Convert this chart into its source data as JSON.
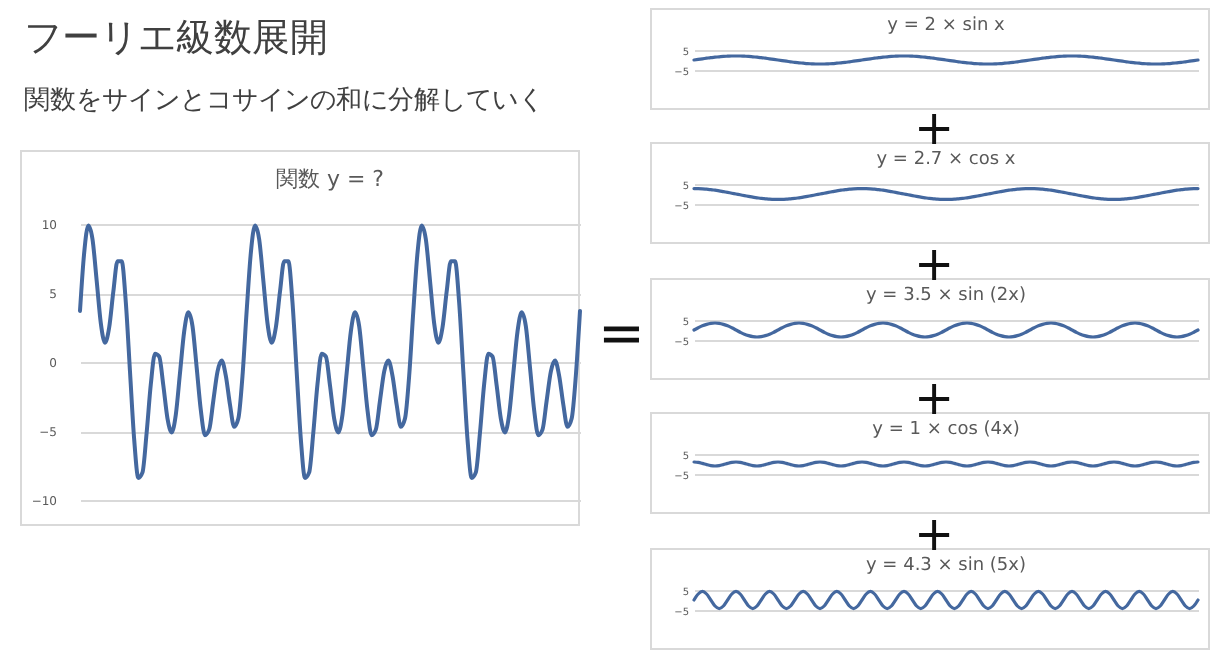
{
  "chart_data": [
    {
      "type": "other",
      "title": "フーリエ級数展開",
      "subtitle": "関数をサインとコサインの和に分解していく"
    },
    {
      "type": "line",
      "title": "関数 y = ?",
      "annotations": [
        "="
      ],
      "categories": [
        null,
        null,
        null,
        null,
        null,
        null,
        null,
        null,
        null,
        null,
        null,
        null,
        null,
        null,
        null,
        null,
        null,
        null,
        null,
        null,
        null,
        null,
        null,
        null,
        null,
        null,
        null,
        null,
        null,
        null,
        null,
        null,
        null,
        null,
        null,
        null,
        null,
        null,
        null,
        null,
        null,
        null,
        null,
        null,
        null,
        null,
        null,
        null,
        null,
        null,
        null,
        null,
        null,
        null,
        null,
        null,
        null,
        null,
        null,
        null,
        null,
        null,
        null,
        null,
        null,
        null,
        null,
        null,
        null,
        null,
        null,
        null,
        null,
        null,
        null,
        null,
        null,
        null,
        null,
        null,
        null,
        null,
        null,
        null,
        null,
        null,
        null,
        null,
        null,
        null,
        null,
        null,
        null,
        null,
        null,
        null,
        null,
        null,
        null,
        null,
        null,
        null,
        null,
        null,
        null,
        null,
        null,
        null,
        null,
        null,
        null,
        null,
        null,
        null,
        null,
        null,
        null,
        null,
        null,
        null,
        null
      ],
      "ylim": [
        -10,
        10
      ],
      "yticks": [
        -10,
        -5,
        0,
        5,
        10
      ],
      "grid": "y",
      "tick_labels": "y",
      "series": [
        {
          "color": "#44689f",
          "values": [
            3.7,
            7.9,
            9.9,
            8.9,
            5.9,
            2.8,
            1.4,
            2.5,
            5.1,
            7.3,
            7.3,
            4.3,
            -0.7,
            -5.6,
            -8.4,
            -8.0,
            -5.1,
            -1.6,
            0.6,
            0.4,
            -1.7,
            -4.1,
            -5.1,
            -3.8,
            -0.8,
            2.2,
            3.6,
            2.6,
            -0.4,
            -3.5,
            -5.3,
            -4.9,
            -2.8,
            -0.7,
            0.1,
            -1.0,
            -3.1,
            -4.7,
            -4.1,
            -1.0,
            3.7,
            7.9,
            9.9,
            8.9,
            5.9,
            2.8,
            1.4,
            2.5,
            5.1,
            7.3,
            7.3,
            4.3,
            -0.7,
            -5.6,
            -8.4,
            -8.0,
            -5.1,
            -1.6,
            0.6,
            0.4,
            -1.7,
            -4.1,
            -5.1,
            -3.8,
            -0.8,
            2.2,
            3.6,
            2.6,
            -0.4,
            -3.5,
            -5.3,
            -4.9,
            -2.8,
            -0.7,
            0.1,
            -1.0,
            -3.1,
            -4.7,
            -4.1,
            -1.0,
            3.7,
            7.9,
            9.9,
            8.9,
            5.9,
            2.8,
            1.4,
            2.5,
            5.1,
            7.3,
            7.3,
            4.3,
            -0.7,
            -5.6,
            -8.4,
            -8.0,
            -5.1,
            -1.6,
            0.6,
            0.4,
            -1.7,
            -4.1,
            -5.1,
            -3.8,
            -0.8,
            2.2,
            3.6,
            2.6,
            -0.4,
            -3.5,
            -5.3,
            -4.9,
            -2.8,
            -0.7,
            0.1,
            -1.0,
            -3.1,
            -4.7,
            -4.1,
            -1.0,
            3.7
          ]
        }
      ]
    },
    {
      "type": "line",
      "title": "y = 2 × sin x",
      "categories": [
        null,
        null,
        null,
        null,
        null,
        null,
        null,
        null,
        null,
        null,
        null,
        null,
        null,
        null,
        null,
        null,
        null,
        null,
        null,
        null,
        null,
        null,
        null,
        null,
        null,
        null,
        null,
        null,
        null,
        null,
        null,
        null,
        null,
        null,
        null,
        null,
        null,
        null,
        null,
        null,
        null,
        null,
        null,
        null,
        null,
        null,
        null,
        null,
        null,
        null,
        null,
        null,
        null,
        null,
        null,
        null,
        null,
        null,
        null,
        null,
        null,
        null,
        null,
        null,
        null,
        null,
        null,
        null,
        null,
        null,
        null,
        null,
        null,
        null,
        null,
        null,
        null,
        null,
        null,
        null,
        null,
        null,
        null,
        null,
        null,
        null,
        null,
        null,
        null,
        null,
        null,
        null,
        null,
        null,
        null,
        null,
        null,
        null,
        null,
        null,
        null,
        null,
        null,
        null,
        null,
        null,
        null,
        null,
        null,
        null,
        null,
        null,
        null,
        null,
        null,
        null,
        null,
        null,
        null,
        null,
        null
      ],
      "ylim": [
        -5,
        5
      ],
      "yticks": [
        -5,
        5
      ],
      "grid": "y",
      "tick_labels": "y",
      "series": [
        {
          "color": "#44689f",
          "values": [
            0,
            0.3,
            0.6,
            0.9,
            1.2,
            1.4,
            1.6,
            1.8,
            1.9,
            2.0,
            2.0,
            2.0,
            1.9,
            1.8,
            1.6,
            1.4,
            1.2,
            0.9,
            0.6,
            0.3,
            0,
            -0.3,
            -0.6,
            -0.9,
            -1.2,
            -1.4,
            -1.6,
            -1.8,
            -1.9,
            -2.0,
            -2.0,
            -2.0,
            -1.9,
            -1.8,
            -1.6,
            -1.4,
            -1.2,
            -0.9,
            -0.6,
            -0.3,
            0,
            0.3,
            0.6,
            0.9,
            1.2,
            1.4,
            1.6,
            1.8,
            1.9,
            2.0,
            2.0,
            2.0,
            1.9,
            1.8,
            1.6,
            1.4,
            1.2,
            0.9,
            0.6,
            0.3,
            0,
            -0.3,
            -0.6,
            -0.9,
            -1.2,
            -1.4,
            -1.6,
            -1.8,
            -1.9,
            -2.0,
            -2.0,
            -2.0,
            -1.9,
            -1.8,
            -1.6,
            -1.4,
            -1.2,
            -0.9,
            -0.6,
            -0.3,
            0,
            0.3,
            0.6,
            0.9,
            1.2,
            1.4,
            1.6,
            1.8,
            1.9,
            2.0,
            2.0,
            2.0,
            1.9,
            1.8,
            1.6,
            1.4,
            1.2,
            0.9,
            0.6,
            0.3,
            0,
            -0.3,
            -0.6,
            -0.9,
            -1.2,
            -1.4,
            -1.6,
            -1.8,
            -1.9,
            -2.0,
            -2.0,
            -2.0,
            -1.9,
            -1.8,
            -1.6,
            -1.4,
            -1.2,
            -0.9,
            -0.6,
            -0.3,
            0
          ]
        }
      ]
    },
    {
      "type": "line",
      "title": "y = 2.7 × cos x",
      "annotations": [
        "+"
      ],
      "categories": [
        null,
        null,
        null,
        null,
        null,
        null,
        null,
        null,
        null,
        null,
        null,
        null,
        null,
        null,
        null,
        null,
        null,
        null,
        null,
        null,
        null,
        null,
        null,
        null,
        null,
        null,
        null,
        null,
        null,
        null,
        null,
        null,
        null,
        null,
        null,
        null,
        null,
        null,
        null,
        null,
        null,
        null,
        null,
        null,
        null,
        null,
        null,
        null,
        null,
        null,
        null,
        null,
        null,
        null,
        null,
        null,
        null,
        null,
        null,
        null,
        null,
        null,
        null,
        null,
        null,
        null,
        null,
        null,
        null,
        null,
        null,
        null,
        null,
        null,
        null,
        null,
        null,
        null,
        null,
        null,
        null,
        null,
        null,
        null,
        null,
        null,
        null,
        null,
        null,
        null,
        null,
        null,
        null,
        null,
        null,
        null,
        null,
        null,
        null,
        null,
        null,
        null,
        null,
        null,
        null,
        null,
        null,
        null,
        null,
        null,
        null,
        null,
        null,
        null,
        null,
        null,
        null,
        null,
        null,
        null,
        null
      ],
      "ylim": [
        -5,
        5
      ],
      "yticks": [
        -5,
        5
      ],
      "grid": "y",
      "tick_labels": "y",
      "series": [
        {
          "color": "#44689f",
          "values": [
            2.7,
            2.7,
            2.6,
            2.4,
            2.2,
            1.9,
            1.6,
            1.2,
            0.8,
            0.4,
            0,
            -0.4,
            -0.8,
            -1.2,
            -1.6,
            -1.9,
            -2.2,
            -2.4,
            -2.6,
            -2.7,
            -2.7,
            -2.7,
            -2.6,
            -2.4,
            -2.2,
            -1.9,
            -1.6,
            -1.2,
            -0.8,
            -0.4,
            0,
            0.4,
            0.8,
            1.2,
            1.6,
            1.9,
            2.2,
            2.4,
            2.6,
            2.7,
            2.7,
            2.7,
            2.6,
            2.4,
            2.2,
            1.9,
            1.6,
            1.2,
            0.8,
            0.4,
            0,
            -0.4,
            -0.8,
            -1.2,
            -1.6,
            -1.9,
            -2.2,
            -2.4,
            -2.6,
            -2.7,
            -2.7,
            -2.7,
            -2.6,
            -2.4,
            -2.2,
            -1.9,
            -1.6,
            -1.2,
            -0.8,
            -0.4,
            0,
            0.4,
            0.8,
            1.2,
            1.6,
            1.9,
            2.2,
            2.4,
            2.6,
            2.7,
            2.7,
            2.7,
            2.6,
            2.4,
            2.2,
            1.9,
            1.6,
            1.2,
            0.8,
            0.4,
            0,
            -0.4,
            -0.8,
            -1.2,
            -1.6,
            -1.9,
            -2.2,
            -2.4,
            -2.6,
            -2.7,
            -2.7,
            -2.7,
            -2.6,
            -2.4,
            -2.2,
            -1.9,
            -1.6,
            -1.2,
            -0.8,
            -0.4,
            0,
            0.4,
            0.8,
            1.2,
            1.6,
            1.9,
            2.2,
            2.4,
            2.6,
            2.7,
            2.7
          ]
        }
      ]
    },
    {
      "type": "line",
      "title": "y = 3.5 × sin (2x)",
      "annotations": [
        "+"
      ],
      "categories": [
        null,
        null,
        null,
        null,
        null,
        null,
        null,
        null,
        null,
        null,
        null,
        null,
        null,
        null,
        null,
        null,
        null,
        null,
        null,
        null,
        null,
        null,
        null,
        null,
        null,
        null,
        null,
        null,
        null,
        null,
        null,
        null,
        null,
        null,
        null,
        null,
        null,
        null,
        null,
        null,
        null,
        null,
        null,
        null,
        null,
        null,
        null,
        null,
        null,
        null,
        null,
        null,
        null,
        null,
        null,
        null,
        null,
        null,
        null,
        null,
        null,
        null,
        null,
        null,
        null,
        null,
        null,
        null,
        null,
        null,
        null,
        null,
        null,
        null,
        null,
        null,
        null,
        null,
        null,
        null,
        null,
        null,
        null,
        null,
        null,
        null,
        null,
        null,
        null,
        null,
        null,
        null,
        null,
        null,
        null,
        null,
        null,
        null,
        null,
        null,
        null,
        null,
        null,
        null,
        null,
        null,
        null,
        null,
        null,
        null,
        null,
        null,
        null,
        null,
        null,
        null,
        null,
        null,
        null,
        null,
        null
      ],
      "ylim": [
        -5,
        5
      ],
      "yticks": [
        -5,
        5
      ],
      "grid": "y",
      "tick_labels": "y",
      "series": [
        {
          "color": "#44689f",
          "values": [
            0,
            1.1,
            2.1,
            2.8,
            3.3,
            3.5,
            3.3,
            2.8,
            2.1,
            1.1,
            0,
            -1.1,
            -2.1,
            -2.8,
            -3.3,
            -3.5,
            -3.3,
            -2.8,
            -2.1,
            -1.1,
            0,
            1.1,
            2.1,
            2.8,
            3.3,
            3.5,
            3.3,
            2.8,
            2.1,
            1.1,
            0,
            -1.1,
            -2.1,
            -2.8,
            -3.3,
            -3.5,
            -3.3,
            -2.8,
            -2.1,
            -1.1,
            0,
            1.1,
            2.1,
            2.8,
            3.3,
            3.5,
            3.3,
            2.8,
            2.1,
            1.1,
            0,
            -1.1,
            -2.1,
            -2.8,
            -3.3,
            -3.5,
            -3.3,
            -2.8,
            -2.1,
            -1.1,
            0,
            1.1,
            2.1,
            2.8,
            3.3,
            3.5,
            3.3,
            2.8,
            2.1,
            1.1,
            0,
            -1.1,
            -2.1,
            -2.8,
            -3.3,
            -3.5,
            -3.3,
            -2.8,
            -2.1,
            -1.1,
            0,
            1.1,
            2.1,
            2.8,
            3.3,
            3.5,
            3.3,
            2.8,
            2.1,
            1.1,
            0,
            -1.1,
            -2.1,
            -2.8,
            -3.3,
            -3.5,
            -3.3,
            -2.8,
            -2.1,
            -1.1,
            0,
            1.1,
            2.1,
            2.8,
            3.3,
            3.5,
            3.3,
            2.8,
            2.1,
            1.1,
            0,
            -1.1,
            -2.1,
            -2.8,
            -3.3,
            -3.5,
            -3.3,
            -2.8,
            -2.1,
            -1.1,
            0
          ]
        }
      ]
    },
    {
      "type": "line",
      "title": "y = 1 × cos (4x)",
      "annotations": [
        "+"
      ],
      "categories": [
        null,
        null,
        null,
        null,
        null,
        null,
        null,
        null,
        null,
        null,
        null,
        null,
        null,
        null,
        null,
        null,
        null,
        null,
        null,
        null,
        null,
        null,
        null,
        null,
        null,
        null,
        null,
        null,
        null,
        null,
        null,
        null,
        null,
        null,
        null,
        null,
        null,
        null,
        null,
        null,
        null,
        null,
        null,
        null,
        null,
        null,
        null,
        null,
        null,
        null,
        null,
        null,
        null,
        null,
        null,
        null,
        null,
        null,
        null,
        null,
        null,
        null,
        null,
        null,
        null,
        null,
        null,
        null,
        null,
        null,
        null,
        null,
        null,
        null,
        null,
        null,
        null,
        null,
        null,
        null,
        null,
        null,
        null,
        null,
        null,
        null,
        null,
        null,
        null,
        null,
        null,
        null,
        null,
        null,
        null,
        null,
        null,
        null,
        null,
        null,
        null,
        null,
        null,
        null,
        null,
        null,
        null,
        null,
        null,
        null,
        null,
        null,
        null,
        null,
        null,
        null,
        null,
        null,
        null,
        null,
        null
      ],
      "ylim": [
        -5,
        5
      ],
      "yticks": [
        -5,
        5
      ],
      "grid": "y",
      "tick_labels": "y",
      "series": [
        {
          "color": "#44689f",
          "values": [
            1,
            0.8,
            0.3,
            -0.3,
            -0.8,
            -1,
            -0.8,
            -0.3,
            0.3,
            0.8,
            1,
            0.8,
            0.3,
            -0.3,
            -0.8,
            -1,
            -0.8,
            -0.3,
            0.3,
            0.8,
            1,
            0.8,
            0.3,
            -0.3,
            -0.8,
            -1,
            -0.8,
            -0.3,
            0.3,
            0.8,
            1,
            0.8,
            0.3,
            -0.3,
            -0.8,
            -1,
            -0.8,
            -0.3,
            0.3,
            0.8,
            1,
            0.8,
            0.3,
            -0.3,
            -0.8,
            -1,
            -0.8,
            -0.3,
            0.3,
            0.8,
            1,
            0.8,
            0.3,
            -0.3,
            -0.8,
            -1,
            -0.8,
            -0.3,
            0.3,
            0.8,
            1,
            0.8,
            0.3,
            -0.3,
            -0.8,
            -1,
            -0.8,
            -0.3,
            0.3,
            0.8,
            1,
            0.8,
            0.3,
            -0.3,
            -0.8,
            -1,
            -0.8,
            -0.3,
            0.3,
            0.8,
            1,
            0.8,
            0.3,
            -0.3,
            -0.8,
            -1,
            -0.8,
            -0.3,
            0.3,
            0.8,
            1,
            0.8,
            0.3,
            -0.3,
            -0.8,
            -1,
            -0.8,
            -0.3,
            0.3,
            0.8,
            1,
            0.8,
            0.3,
            -0.3,
            -0.8,
            -1,
            -0.8,
            -0.3,
            0.3,
            0.8,
            1,
            0.8,
            0.3,
            -0.3,
            -0.8,
            -1,
            -0.8,
            -0.3,
            0.3,
            0.8,
            1
          ]
        }
      ]
    },
    {
      "type": "line",
      "title": "y = 4.3 × sin (5x)",
      "annotations": [
        "+"
      ],
      "categories": [
        null,
        null,
        null,
        null,
        null,
        null,
        null,
        null,
        null,
        null,
        null,
        null,
        null,
        null,
        null,
        null,
        null,
        null,
        null,
        null,
        null,
        null,
        null,
        null,
        null,
        null,
        null,
        null,
        null,
        null,
        null,
        null,
        null,
        null,
        null,
        null,
        null,
        null,
        null,
        null,
        null,
        null,
        null,
        null,
        null,
        null,
        null,
        null,
        null,
        null,
        null,
        null,
        null,
        null,
        null,
        null,
        null,
        null,
        null,
        null,
        null,
        null,
        null,
        null,
        null,
        null,
        null,
        null,
        null,
        null,
        null,
        null,
        null,
        null,
        null,
        null,
        null,
        null,
        null,
        null,
        null,
        null,
        null,
        null,
        null,
        null,
        null,
        null,
        null,
        null,
        null,
        null,
        null,
        null,
        null,
        null,
        null,
        null,
        null,
        null,
        null,
        null,
        null,
        null,
        null,
        null,
        null,
        null,
        null,
        null,
        null,
        null,
        null,
        null,
        null,
        null,
        null,
        null,
        null,
        null,
        null
      ],
      "ylim": [
        -5,
        5
      ],
      "yticks": [
        -5,
        5
      ],
      "grid": "y",
      "tick_labels": "y",
      "series": [
        {
          "color": "#44689f",
          "values": [
            0,
            3.0,
            4.3,
            3.0,
            0,
            -3.0,
            -4.3,
            -3.0,
            0,
            3.0,
            4.3,
            3.0,
            0,
            -3.0,
            -4.3,
            -3.0,
            0,
            3.0,
            4.3,
            3.0,
            0,
            -3.0,
            -4.3,
            -3.0,
            0,
            3.0,
            4.3,
            3.0,
            0,
            -3.0,
            -4.3,
            -3.0,
            0,
            3.0,
            4.3,
            3.0,
            0,
            -3.0,
            -4.3,
            -3.0,
            0,
            3.0,
            4.3,
            3.0,
            0,
            -3.0,
            -4.3,
            -3.0,
            0,
            3.0,
            4.3,
            3.0,
            0,
            -3.0,
            -4.3,
            -3.0,
            0,
            3.0,
            4.3,
            3.0,
            0,
            -3.0,
            -4.3,
            -3.0,
            0,
            3.0,
            4.3,
            3.0,
            0,
            -3.0,
            -4.3,
            -3.0,
            0,
            3.0,
            4.3,
            3.0,
            0,
            -3.0,
            -4.3,
            -3.0,
            0,
            3.0,
            4.3,
            3.0,
            0,
            -3.0,
            -4.3,
            -3.0,
            0,
            3.0,
            4.3,
            3.0,
            0,
            -3.0,
            -4.3,
            -3.0,
            0,
            3.0,
            4.3,
            3.0,
            0,
            -3.0,
            -4.3,
            -3.0,
            0,
            3.0,
            4.3,
            3.0,
            0,
            -3.0,
            -4.3,
            -3.0,
            0,
            3.0,
            4.3,
            3.0,
            0,
            -3.0,
            -4.3,
            -3.0,
            0
          ]
        }
      ]
    }
  ]
}
